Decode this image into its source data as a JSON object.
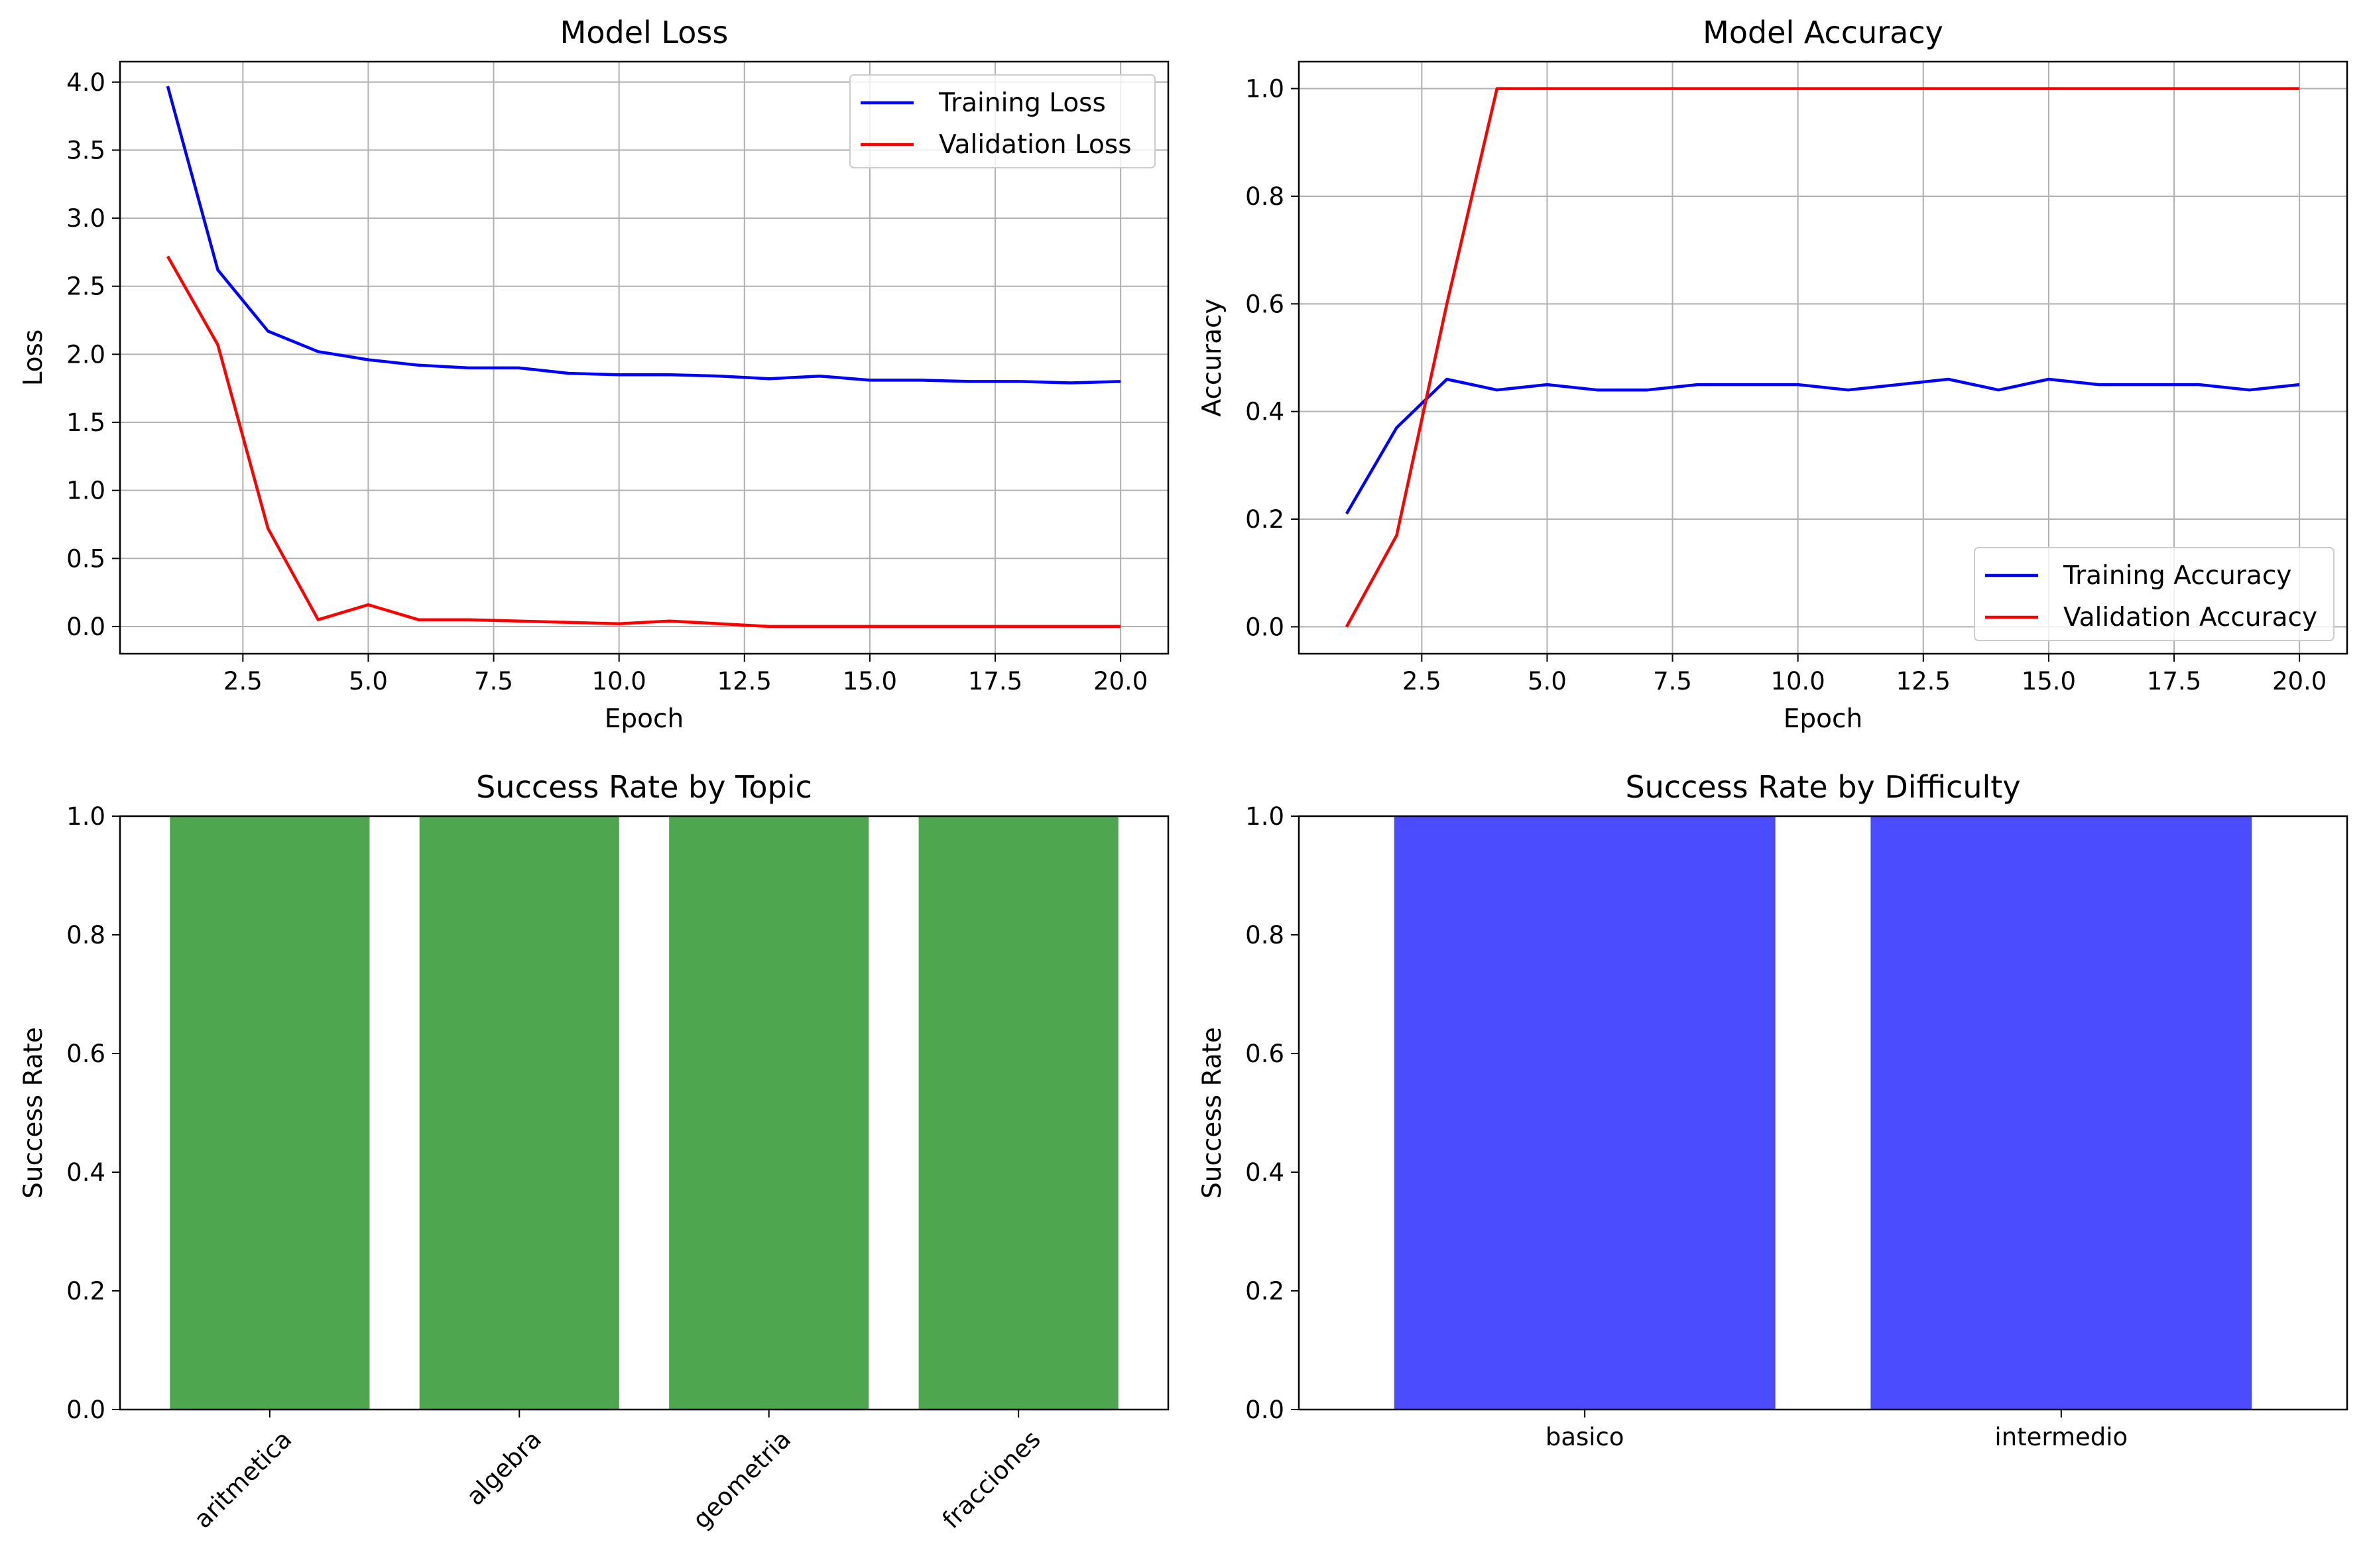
{
  "colors": {
    "training": "#0000ff",
    "validation": "#ff0000",
    "topic_bar": "#4ea64e",
    "difficulty_bar": "#4c4cff",
    "grid": "#b0b0b0",
    "axis": "#000000"
  },
  "chart_data": [
    {
      "type": "line",
      "title": "Model Loss",
      "xlabel": "Epoch",
      "ylabel": "Loss",
      "xlim": [
        0.05,
        20.95
      ],
      "ylim": [
        -0.2,
        4.15
      ],
      "xticks": [
        2.5,
        5.0,
        7.5,
        10.0,
        12.5,
        15.0,
        17.5,
        20.0
      ],
      "xtick_labels": [
        "2.5",
        "5.0",
        "7.5",
        "10.0",
        "12.5",
        "15.0",
        "17.5",
        "20.0"
      ],
      "yticks": [
        0.0,
        0.5,
        1.0,
        1.5,
        2.0,
        2.5,
        3.0,
        3.5,
        4.0
      ],
      "ytick_labels": [
        "0.0",
        "0.5",
        "1.0",
        "1.5",
        "2.0",
        "2.5",
        "3.0",
        "3.5",
        "4.0"
      ],
      "grid": true,
      "legend_loc": "top-right",
      "x": [
        1,
        2,
        3,
        4,
        5,
        6,
        7,
        8,
        9,
        10,
        11,
        12,
        13,
        14,
        15,
        16,
        17,
        18,
        19,
        20
      ],
      "series": [
        {
          "name": "Training Loss",
          "color": "#0000ff",
          "values": [
            3.97,
            2.62,
            2.17,
            2.02,
            1.96,
            1.92,
            1.9,
            1.9,
            1.86,
            1.85,
            1.85,
            1.84,
            1.82,
            1.84,
            1.81,
            1.81,
            1.8,
            1.8,
            1.79,
            1.8
          ]
        },
        {
          "name": "Validation Loss",
          "color": "#ff0000",
          "values": [
            2.72,
            2.07,
            0.72,
            0.05,
            0.16,
            0.05,
            0.05,
            0.04,
            0.03,
            0.02,
            0.04,
            0.02,
            0.0,
            0.0,
            0.0,
            0.0,
            0.0,
            0.0,
            0.0,
            0.0
          ]
        }
      ]
    },
    {
      "type": "line",
      "title": "Model Accuracy",
      "xlabel": "Epoch",
      "ylabel": "Accuracy",
      "xlim": [
        0.05,
        20.95
      ],
      "ylim": [
        -0.05,
        1.05
      ],
      "xticks": [
        2.5,
        5.0,
        7.5,
        10.0,
        12.5,
        15.0,
        17.5,
        20.0
      ],
      "xtick_labels": [
        "2.5",
        "5.0",
        "7.5",
        "10.0",
        "12.5",
        "15.0",
        "17.5",
        "20.0"
      ],
      "yticks": [
        0.0,
        0.2,
        0.4,
        0.6,
        0.8,
        1.0
      ],
      "ytick_labels": [
        "0.0",
        "0.2",
        "0.4",
        "0.6",
        "0.8",
        "1.0"
      ],
      "grid": true,
      "legend_loc": "bottom-right",
      "x": [
        1,
        2,
        3,
        4,
        5,
        6,
        7,
        8,
        9,
        10,
        11,
        12,
        13,
        14,
        15,
        16,
        17,
        18,
        19,
        20
      ],
      "series": [
        {
          "name": "Training Accuracy",
          "color": "#0000ff",
          "values": [
            0.21,
            0.37,
            0.46,
            0.44,
            0.45,
            0.44,
            0.44,
            0.45,
            0.45,
            0.45,
            0.44,
            0.45,
            0.46,
            0.44,
            0.46,
            0.45,
            0.45,
            0.45,
            0.44,
            0.45
          ]
        },
        {
          "name": "Validation Accuracy",
          "color": "#ff0000",
          "values": [
            0.0,
            0.17,
            0.6,
            1.0,
            1.0,
            1.0,
            1.0,
            1.0,
            1.0,
            1.0,
            1.0,
            1.0,
            1.0,
            1.0,
            1.0,
            1.0,
            1.0,
            1.0,
            1.0,
            1.0
          ]
        }
      ]
    },
    {
      "type": "bar",
      "title": "Success Rate by Topic",
      "xlabel": "",
      "ylabel": "Success Rate",
      "ylim": [
        0,
        1
      ],
      "yticks": [
        0.0,
        0.2,
        0.4,
        0.6,
        0.8,
        1.0
      ],
      "ytick_labels": [
        "0.0",
        "0.2",
        "0.4",
        "0.6",
        "0.8",
        "1.0"
      ],
      "grid": false,
      "categories": [
        "aritmetica",
        "algebra",
        "geometria",
        "fracciones"
      ],
      "values": [
        1.0,
        1.0,
        1.0,
        1.0
      ],
      "color": "#4ea64e",
      "label_rotation": -45
    },
    {
      "type": "bar",
      "title": "Success Rate by Difficulty",
      "xlabel": "",
      "ylabel": "Success Rate",
      "ylim": [
        0,
        1
      ],
      "yticks": [
        0.0,
        0.2,
        0.4,
        0.6,
        0.8,
        1.0
      ],
      "ytick_labels": [
        "0.0",
        "0.2",
        "0.4",
        "0.6",
        "0.8",
        "1.0"
      ],
      "grid": false,
      "categories": [
        "basico",
        "intermedio"
      ],
      "values": [
        1.0,
        1.0
      ],
      "color": "#4c4cff",
      "label_rotation": 0
    }
  ]
}
